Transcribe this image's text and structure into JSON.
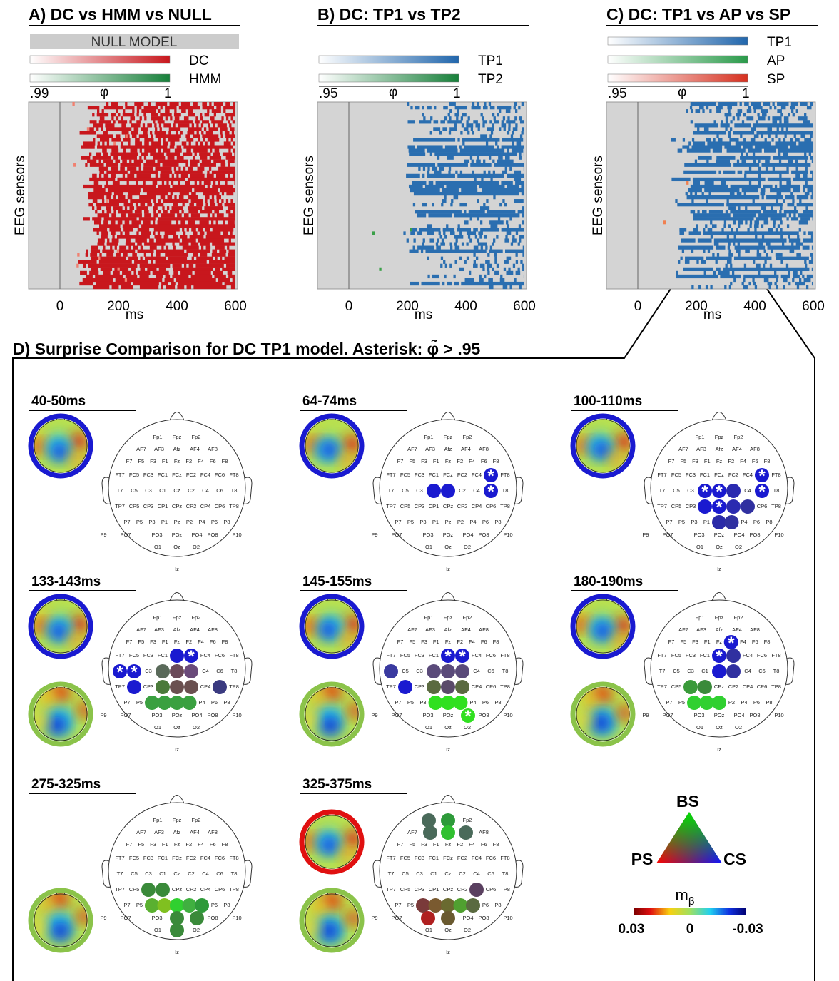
{
  "panels": [
    {
      "title": "A) DC vs HMM vs NULL",
      "legend": [
        {
          "label": "NULL MODEL",
          "color": "#cccccc",
          "label_inside": true
        },
        {
          "label": "DC",
          "color": "#c8171d"
        },
        {
          "label": "HMM",
          "color": "#17803a"
        }
      ],
      "scale": {
        "min": ".99",
        "symbol": "φ",
        "max": "1"
      },
      "heat_colors": [
        "#c8171d",
        "#f08070"
      ],
      "y_label": "EEG sensors",
      "x_ticks": [
        0,
        200,
        400,
        600
      ],
      "x_unit": "ms"
    },
    {
      "title": "B) DC: TP1 vs TP2",
      "legend": [
        {
          "label": "TP1",
          "color": "#2166ac"
        },
        {
          "label": "TP2",
          "color": "#17803a"
        }
      ],
      "scale": {
        "min": ".95",
        "symbol": "φ",
        "max": "1"
      },
      "heat_colors": [
        "#2a6eb0",
        "#3aa048"
      ],
      "y_label": "EEG sensors",
      "x_ticks": [
        0,
        200,
        400,
        600
      ],
      "x_unit": "ms"
    },
    {
      "title": "C) DC: TP1 vs AP vs SP",
      "legend": [
        {
          "label": "TP1",
          "color": "#2166ac"
        },
        {
          "label": "AP",
          "color": "#2a9a4a"
        },
        {
          "label": "SP",
          "color": "#d7301f"
        }
      ],
      "scale": {
        "min": ".95",
        "symbol": "φ",
        "max": "1"
      },
      "heat_colors": [
        "#2a6eb0",
        "#f08050"
      ],
      "y_label": "EEG sensors",
      "x_ticks": [
        0,
        200,
        400,
        600
      ],
      "x_unit": "ms"
    }
  ],
  "panel_d": {
    "title": "D) Surprise Comparison for DC TP1 model. Asterisk: φ̃ > .95",
    "asterisk": "*",
    "electrode_rows": [
      [
        "Fp1",
        "Fpz",
        "Fp2"
      ],
      [
        "AF7",
        "AF3",
        "Afz",
        "AF4",
        "AF8"
      ],
      [
        "F7",
        "F5",
        "F3",
        "F1",
        "Fz",
        "F2",
        "F4",
        "F6",
        "F8"
      ],
      [
        "FT7",
        "FC5",
        "FC3",
        "FC1",
        "FCz",
        "FC2",
        "FC4",
        "FC6",
        "FT8"
      ],
      [
        "T7",
        "C5",
        "C3",
        "C1",
        "Cz",
        "C2",
        "C4",
        "C6",
        "T8"
      ],
      [
        "TP7",
        "CP5",
        "CP3",
        "CP1",
        "CPz",
        "CP2",
        "CP4",
        "CP6",
        "TP8"
      ],
      [
        "P7",
        "P5",
        "P3",
        "P1",
        "Pz",
        "P2",
        "P4",
        "P6",
        "P8"
      ],
      [
        "P9",
        "PO7",
        "PO3",
        "POz",
        "PO4",
        "PO8",
        "P10"
      ],
      [
        "O1",
        "Oz",
        "O2"
      ],
      [
        "Iz"
      ]
    ],
    "maps": [
      {
        "label": "40-50ms",
        "rings": {
          "upper": "#1a1ad0"
        },
        "highlights": []
      },
      {
        "label": "64-74ms",
        "rings": {
          "upper": "#1a1ad0"
        },
        "highlights": [
          {
            "e": "C1",
            "color": "#1a1ad0"
          },
          {
            "e": "Cz",
            "color": "#1a1ad0"
          },
          {
            "e": "FC6",
            "color": "#1a1ad0",
            "star": true
          },
          {
            "e": "C6",
            "color": "#1a1ad0",
            "star": true
          }
        ]
      },
      {
        "label": "100-110ms",
        "rings": {
          "upper": "#1a1ad0"
        },
        "highlights": [
          {
            "e": "FC6",
            "color": "#1a1ad0",
            "star": true
          },
          {
            "e": "C6",
            "color": "#1a1ad0",
            "star": true
          },
          {
            "e": "C1",
            "color": "#1a1ad0",
            "star": true
          },
          {
            "e": "Cz",
            "color": "#1a1ad0",
            "star": true
          },
          {
            "e": "C2",
            "color": "#2a2ab0"
          },
          {
            "e": "CP1",
            "color": "#1a1ad0"
          },
          {
            "e": "CPz",
            "color": "#1a1ad0",
            "star": true
          },
          {
            "e": "CP2",
            "color": "#2a2ab0"
          },
          {
            "e": "CP4",
            "color": "#3030a0"
          },
          {
            "e": "Pz",
            "color": "#2a2aa8"
          },
          {
            "e": "P2",
            "color": "#3030a0"
          }
        ]
      },
      {
        "label": "133-143ms",
        "rings": {
          "upper": "#1a1ad0",
          "lower": "#8bc34a"
        },
        "highlights": [
          {
            "e": "FCz",
            "color": "#1a1ad0"
          },
          {
            "e": "FC2",
            "color": "#1a1ad0",
            "star": true
          },
          {
            "e": "T7",
            "color": "#1a1ad0",
            "star": true
          },
          {
            "e": "C5",
            "color": "#1a1ad0",
            "star": true
          },
          {
            "e": "C1",
            "color": "#5a6a5a"
          },
          {
            "e": "Cz",
            "color": "#6b4a5a"
          },
          {
            "e": "C2",
            "color": "#6a4a7a"
          },
          {
            "e": "CP5",
            "color": "#1a1ad0"
          },
          {
            "e": "CP1",
            "color": "#4a7a3a"
          },
          {
            "e": "CPz",
            "color": "#6a5050"
          },
          {
            "e": "CP2",
            "color": "#6a5050"
          },
          {
            "e": "CP6",
            "color": "#3a3a80"
          },
          {
            "e": "P3",
            "color": "#3aa040"
          },
          {
            "e": "P1",
            "color": "#3aa040"
          },
          {
            "e": "Pz",
            "color": "#3aa040"
          },
          {
            "e": "P2",
            "color": "#3aa040"
          }
        ]
      },
      {
        "label": "145-155ms",
        "rings": {
          "upper": "#1a1ad0",
          "lower": "#8bc34a"
        },
        "highlights": [
          {
            "e": "FCz",
            "color": "#1a1ad0",
            "star": true
          },
          {
            "e": "FC2",
            "color": "#1a1ad0",
            "star": true
          },
          {
            "e": "T7",
            "color": "#3a3aa0"
          },
          {
            "e": "C1",
            "color": "#5a4a7a"
          },
          {
            "e": "Cz",
            "color": "#5a4a7a"
          },
          {
            "e": "C2",
            "color": "#5a4a7a"
          },
          {
            "e": "CP5",
            "color": "#1a1ad0"
          },
          {
            "e": "CP1",
            "color": "#5a6a40"
          },
          {
            "e": "CPz",
            "color": "#5a4a6a"
          },
          {
            "e": "CP2",
            "color": "#5a6a40"
          },
          {
            "e": "P1",
            "color": "#30e020"
          },
          {
            "e": "Pz",
            "color": "#30e020"
          },
          {
            "e": "P2",
            "color": "#30e020"
          },
          {
            "e": "PO4",
            "color": "#30e020",
            "star": true
          }
        ]
      },
      {
        "label": "180-190ms",
        "rings": {
          "upper": "#1a1ad0",
          "lower": "#8bc34a"
        },
        "highlights": [
          {
            "e": "F2",
            "color": "#1a1ad0",
            "star": true
          },
          {
            "e": "FCz",
            "color": "#1a1ad0",
            "star": true
          },
          {
            "e": "FC2",
            "color": "#3030a0"
          },
          {
            "e": "Cz",
            "color": "#1a1ad0"
          },
          {
            "e": "C2",
            "color": "#3030a0"
          },
          {
            "e": "CP3",
            "color": "#3a9a3a"
          },
          {
            "e": "CP1",
            "color": "#3a8a3a"
          },
          {
            "e": "P3",
            "color": "#30d030"
          },
          {
            "e": "P1",
            "color": "#30d030"
          },
          {
            "e": "Pz",
            "color": "#30d030"
          }
        ]
      },
      {
        "label": "275-325ms",
        "rings": {
          "lower": "#8bc34a"
        },
        "highlights": [
          {
            "e": "CP3",
            "color": "#3a8a3a"
          },
          {
            "e": "CP1",
            "color": "#3a8a3a"
          },
          {
            "e": "P3",
            "color": "#5ab030"
          },
          {
            "e": "P1",
            "color": "#80c020"
          },
          {
            "e": "Pz",
            "color": "#30d030"
          },
          {
            "e": "P2",
            "color": "#40b040"
          },
          {
            "e": "P4",
            "color": "#2e9a3a"
          },
          {
            "e": "POz",
            "color": "#3a8a3a"
          },
          {
            "e": "PO4",
            "color": "#3a8a3a"
          },
          {
            "e": "Oz",
            "color": "#3a8a3a"
          }
        ]
      },
      {
        "label": "325-375ms",
        "rings": {
          "upper": "#e01010",
          "lower": "#8bc34a"
        },
        "highlights": [
          {
            "e": "Fp1",
            "color": "#4a6a5a"
          },
          {
            "e": "Fpz",
            "color": "#2e9a3a"
          },
          {
            "e": "AF3",
            "color": "#4a6a5a"
          },
          {
            "e": "Afz",
            "color": "#30c030"
          },
          {
            "e": "AF4",
            "color": "#4a6a5a"
          },
          {
            "e": "CP4",
            "color": "#5a4060"
          },
          {
            "e": "P3",
            "color": "#7a3a3a"
          },
          {
            "e": "P1",
            "color": "#7a5a30"
          },
          {
            "e": "Pz",
            "color": "#6a6a30"
          },
          {
            "e": "P2",
            "color": "#50a030"
          },
          {
            "e": "P4",
            "color": "#5a6a40"
          },
          {
            "e": "PO3",
            "color": "#b02020"
          },
          {
            "e": "POz",
            "color": "#6a5a30"
          }
        ]
      }
    ],
    "legend": {
      "corners": {
        "top": "BS",
        "left": "PS",
        "right": "CS"
      },
      "m_beta": {
        "base": "m",
        "sub": "β"
      },
      "colorbar": {
        "left": "0.03",
        "middle": "0",
        "right": "-0.03"
      }
    }
  }
}
